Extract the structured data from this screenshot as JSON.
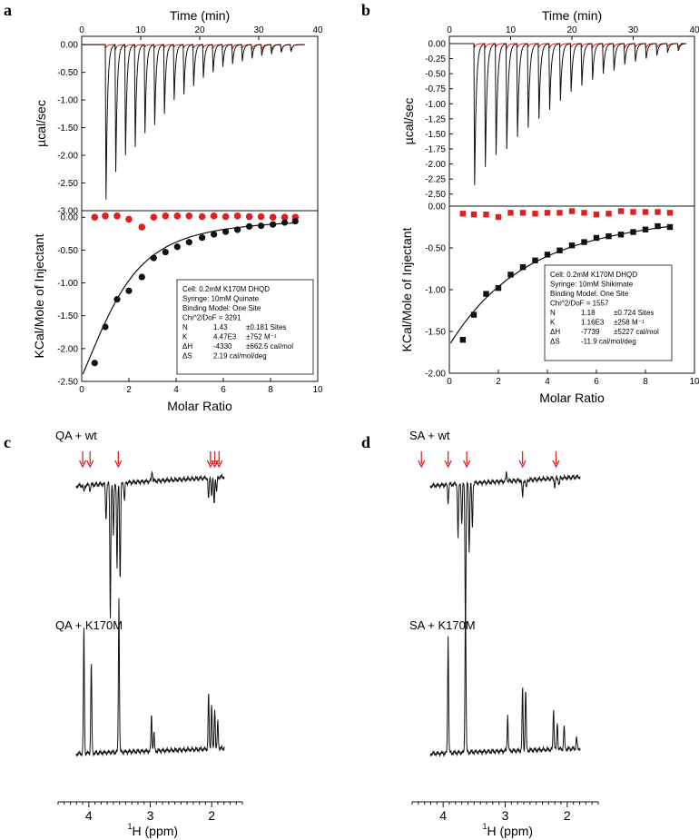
{
  "colors": {
    "black": "#111111",
    "red": "#e02020",
    "grid_bg": "#ffffff"
  },
  "panel_labels": {
    "a": "a",
    "b": "b",
    "c": "c",
    "d": "d"
  },
  "chart_data": [
    {
      "id": "a",
      "type": "scatter",
      "top": {
        "xlabel": "Time (min)",
        "ylabel": "µcal/sec",
        "xlim": [
          0,
          40
        ],
        "ylim": [
          -3.0,
          0.15
        ],
        "xticks": [
          "0",
          "10",
          "20",
          "30",
          "40"
        ],
        "yticks": [
          "0.00",
          "-0.50",
          "-1.00",
          "-1.50",
          "-2.00",
          "-2.50",
          "-3.00"
        ],
        "inject_start": 4,
        "inject_step": 1.65,
        "peaks": [
          2.8,
          2.3,
          2.0,
          1.85,
          1.6,
          1.45,
          1.25,
          1.0,
          0.9,
          0.75,
          0.6,
          0.5,
          0.4,
          0.35,
          0.3,
          0.25,
          0.2,
          0.17,
          0.14,
          0.12
        ],
        "ref_peaks": [
          0.05,
          0.08,
          0.05,
          0.05,
          0.04,
          0.05,
          0.05,
          0.04,
          0.05,
          0.06,
          0.05,
          0.06,
          0.05,
          0.07,
          0.06,
          0.08,
          0.09,
          0.1,
          0.12,
          0.13
        ]
      },
      "bottom": {
        "xlabel": "Molar Ratio",
        "ylabel": "KCal/Mole of Injectant",
        "xlim": [
          0,
          10
        ],
        "ylim": [
          -2.5,
          0.1
        ],
        "xticks": [
          "0",
          "2",
          "4",
          "6",
          "8",
          "10"
        ],
        "yticks": [
          "0.00",
          "-0.50",
          "-1.00",
          "-1.50",
          "-2.00",
          "-2.50"
        ],
        "marker": "circle",
        "x": [
          0.55,
          1.0,
          1.5,
          2.0,
          2.55,
          3.05,
          3.55,
          4.05,
          4.55,
          5.1,
          5.6,
          6.1,
          6.6,
          7.1,
          7.6,
          8.1,
          8.6,
          9.05
        ],
        "y": [
          -2.22,
          -1.67,
          -1.25,
          -1.12,
          -0.91,
          -0.62,
          -0.53,
          -0.45,
          -0.38,
          -0.31,
          -0.26,
          -0.22,
          -0.19,
          -0.14,
          -0.13,
          -0.11,
          -0.08,
          -0.06
        ],
        "ref_x": [
          0.55,
          1.0,
          1.5,
          2.0,
          2.55,
          3.05,
          3.55,
          4.05,
          4.55,
          5.1,
          5.6,
          6.1,
          6.6,
          7.1,
          7.6,
          8.1,
          8.6,
          9.05
        ],
        "ref_y": [
          0.0,
          0.02,
          0.02,
          -0.03,
          -0.15,
          0.0,
          0.02,
          0.02,
          0.02,
          0.01,
          0.02,
          0.01,
          0.02,
          0.01,
          0.01,
          0.0,
          0.0,
          0.0
        ],
        "fit": {
          "N": 1.43,
          "K": 4470,
          "dH": -4330,
          "Mt": 0.2
        },
        "box_lines": [
          "Cell: 0.2mM K170M DHQD",
          "Syringe: 10mM Quinate",
          "Binding Model: One Site",
          "Chi^2/DoF = 3291"
        ],
        "params": [
          [
            "N",
            "1.43",
            "±0.181 Sites"
          ],
          [
            "K",
            "4.47E3",
            "±752 M⁻¹"
          ],
          [
            "ΔH",
            "-4330",
            "±662.5 cal/mol"
          ],
          [
            "ΔS",
            "2.19 cal/mol/deg",
            ""
          ]
        ]
      }
    },
    {
      "id": "b",
      "type": "scatter",
      "top": {
        "xlabel": "Time (min)",
        "ylabel": "µcal/sec",
        "xlim": [
          0,
          40
        ],
        "ylim": [
          -2.7,
          0.12
        ],
        "xticks": [
          "0",
          "10",
          "20",
          "30",
          "40"
        ],
        "yticks": [
          "0.00",
          "-0.25",
          "-0.50",
          "-0.75",
          "-1.00",
          "-1.25",
          "-1.50",
          "-1.75",
          "-2.00",
          "-2.25",
          "-2.50"
        ],
        "inject_start": 4,
        "inject_step": 1.75,
        "peaks": [
          2.35,
          2.05,
          1.85,
          1.75,
          1.55,
          1.4,
          1.25,
          1.1,
          0.95,
          0.8,
          0.7,
          0.6,
          0.5,
          0.45,
          0.35,
          0.3,
          0.25,
          0.2,
          0.15,
          0.12
        ],
        "ref_peaks": [
          0.06,
          0.07,
          0.05,
          0.08,
          0.06,
          0.05,
          0.06,
          0.07,
          0.05,
          0.06,
          0.06,
          0.07,
          0.06,
          0.06,
          0.07,
          0.06,
          0.07,
          0.06,
          0.05,
          0.06
        ]
      },
      "bottom": {
        "xlabel": "Molar Ratio",
        "ylabel": "KCal/Mole of Injectant",
        "xlim": [
          0,
          10
        ],
        "ylim": [
          -2.0,
          0.0
        ],
        "xticks": [
          "0",
          "2",
          "4",
          "6",
          "8",
          "10"
        ],
        "yticks": [
          "0.00",
          "-0.50",
          "-1.00",
          "-1.50",
          "-2.00"
        ],
        "marker": "square",
        "x": [
          0.55,
          1.0,
          1.5,
          2.0,
          2.5,
          3.0,
          3.5,
          4.0,
          4.5,
          5.0,
          5.5,
          6.0,
          6.5,
          7.0,
          7.5,
          8.0,
          8.5,
          9.0
        ],
        "y": [
          -1.6,
          -1.3,
          -1.05,
          -0.98,
          -0.82,
          -0.73,
          -0.65,
          -0.58,
          -0.53,
          -0.47,
          -0.43,
          -0.38,
          -0.36,
          -0.34,
          -0.31,
          -0.28,
          -0.24,
          -0.25
        ],
        "ref_x": [
          0.55,
          1.0,
          1.5,
          2.0,
          2.5,
          3.0,
          3.5,
          4.0,
          4.5,
          5.0,
          5.5,
          6.0,
          6.5,
          7.0,
          7.5,
          8.0,
          8.5,
          9.0
        ],
        "ref_y": [
          -0.09,
          -0.1,
          -0.1,
          -0.13,
          -0.08,
          -0.08,
          -0.09,
          -0.08,
          -0.08,
          -0.06,
          -0.08,
          -0.1,
          -0.09,
          -0.06,
          -0.07,
          -0.07,
          -0.07,
          -0.08
        ],
        "fit": {
          "N": 1.18,
          "K": 1160,
          "dH": -7739,
          "Mt": 0.2
        },
        "box_lines": [
          "Cell: 0.2mM K170M DHQD",
          "Syringe: 10mM Shikimate",
          "Binding Model: One Site",
          "Chi^2/DoF = 1557"
        ],
        "params": [
          [
            "N",
            "1.18",
            "±0.724 Sites"
          ],
          [
            "K",
            "1.16E3",
            "±258 M⁻¹"
          ],
          [
            "ΔH",
            "-7739",
            "±5227 cal/mol"
          ],
          [
            "ΔS",
            "-11.9 cal/mol/deg",
            ""
          ]
        ]
      }
    }
  ],
  "nmr": [
    {
      "id": "c",
      "label_top": "QA + wt",
      "label_bottom": "QA + K170M",
      "xlim": [
        4.5,
        1.5
      ],
      "xticks": [
        "4",
        "3",
        "2"
      ],
      "xlabel_sup": "1",
      "xlabel": "H (ppm)",
      "arrows_ppm": [
        4.1,
        3.98,
        3.52,
        2.02,
        1.95,
        1.88
      ],
      "top_peaks": [
        [
          4.08,
          -8
        ],
        [
          3.98,
          -6
        ],
        [
          3.72,
          -40
        ],
        [
          3.65,
          -150
        ],
        [
          3.6,
          -60
        ],
        [
          3.54,
          -95
        ],
        [
          3.49,
          -110
        ],
        [
          3.42,
          -20
        ],
        [
          2.97,
          12
        ],
        [
          2.05,
          -25
        ],
        [
          2.0,
          -20
        ],
        [
          1.96,
          -30
        ],
        [
          1.92,
          -18
        ]
      ],
      "bottom_peaks": [
        [
          4.08,
          140
        ],
        [
          3.96,
          100
        ],
        [
          3.51,
          170
        ],
        [
          2.98,
          40
        ],
        [
          2.94,
          20
        ],
        [
          2.05,
          60
        ],
        [
          2.0,
          50
        ],
        [
          1.95,
          45
        ],
        [
          1.9,
          30
        ],
        [
          1.78,
          12
        ]
      ]
    },
    {
      "id": "d",
      "label_top": "SA + wt",
      "label_bottom": "SA + K170M",
      "xlim": [
        4.5,
        1.5
      ],
      "xticks": [
        "4",
        "3",
        "2"
      ],
      "xlabel_sup": "1",
      "xlabel": "H (ppm)",
      "arrows_ppm": [
        4.35,
        3.92,
        3.62,
        2.72,
        2.18
      ],
      "top_peaks": [
        [
          4.35,
          -12
        ],
        [
          3.92,
          -20
        ],
        [
          3.76,
          -60
        ],
        [
          3.7,
          -45
        ],
        [
          3.64,
          -160
        ],
        [
          3.58,
          -75
        ],
        [
          3.53,
          -50
        ],
        [
          2.98,
          10
        ],
        [
          2.72,
          -20
        ],
        [
          2.66,
          -10
        ],
        [
          2.2,
          -10
        ],
        [
          2.13,
          -8
        ]
      ],
      "bottom_peaks": [
        [
          4.35,
          140
        ],
        [
          3.92,
          130
        ],
        [
          3.64,
          165
        ],
        [
          2.96,
          40
        ],
        [
          2.72,
          70
        ],
        [
          2.67,
          68
        ],
        [
          2.22,
          45
        ],
        [
          2.16,
          30
        ],
        [
          2.05,
          25
        ],
        [
          1.85,
          12
        ]
      ]
    }
  ]
}
